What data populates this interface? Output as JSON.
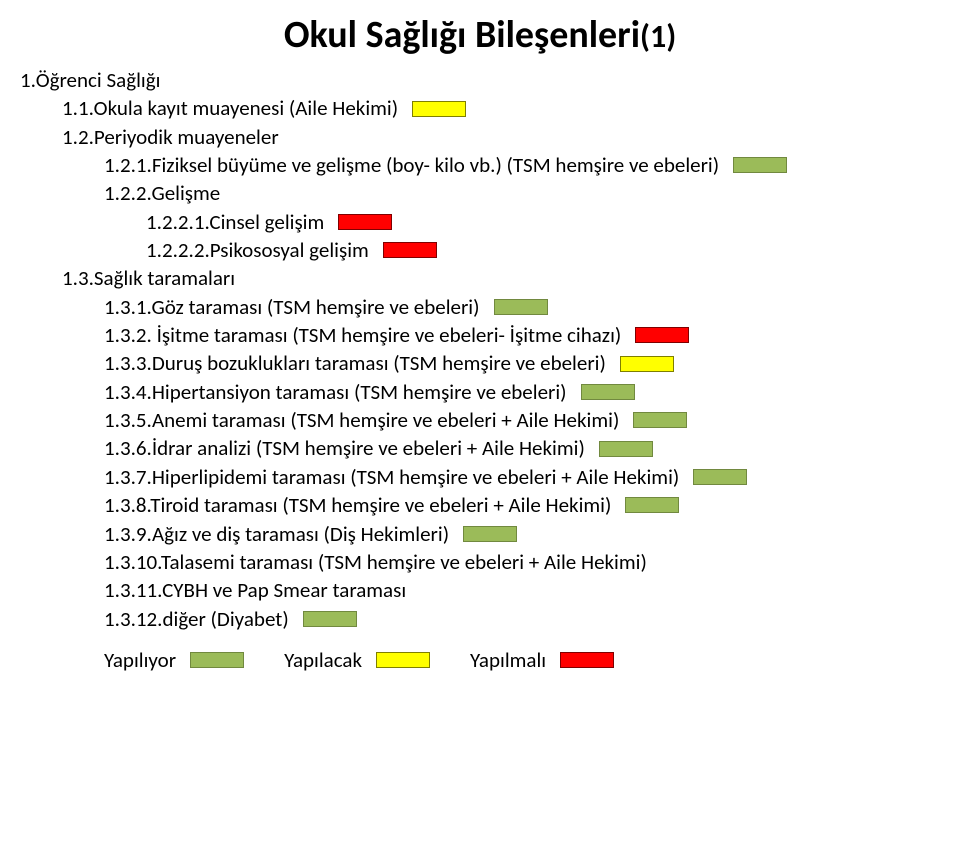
{
  "title_main": "Okul Sağlığı Bileşenleri",
  "title_suffix": "(1)",
  "colors": {
    "green_fill": "#9bbb59",
    "green_border": "#71893f",
    "yellow_fill": "#ffff00",
    "yellow_border": "#7f7f00",
    "red_fill": "#ff0000",
    "red_border": "#7f0000",
    "text": "#000000"
  },
  "items": [
    {
      "indent": 0,
      "text": "1.Öğrenci Sağlığı",
      "swatch": null
    },
    {
      "indent": 1,
      "text": "1.1.Okula kayıt muayenesi (Aile Hekimi)",
      "swatch": "yellow"
    },
    {
      "indent": 1,
      "text": "1.2.Periyodik muayeneler",
      "swatch": null
    },
    {
      "indent": 2,
      "text": "1.2.1.Fiziksel büyüme ve gelişme (boy- kilo vb.)  (TSM hemşire ve ebeleri)",
      "swatch": "green"
    },
    {
      "indent": 2,
      "text": "1.2.2.Gelişme",
      "swatch": null
    },
    {
      "indent": 3,
      "text": "1.2.2.1.Cinsel gelişim",
      "swatch": "red"
    },
    {
      "indent": 3,
      "text": "1.2.2.2.Psikososyal gelişim",
      "swatch": "red"
    },
    {
      "indent": 1,
      "text": "1.3.Sağlık taramaları",
      "swatch": null
    },
    {
      "indent": 2,
      "text": "1.3.1.Göz taraması  (TSM hemşire ve ebeleri)",
      "swatch": "green"
    },
    {
      "indent": 2,
      "text": "1.3.2. İşitme taraması (TSM hemşire ve ebeleri- İşitme cihazı)",
      "swatch": "red"
    },
    {
      "indent": 2,
      "text": "1.3.3.Duruş bozuklukları taraması (TSM hemşire ve ebeleri)",
      "swatch": "yellow"
    },
    {
      "indent": 2,
      "text": "1.3.4.Hipertansiyon taraması (TSM hemşire ve ebeleri)",
      "swatch": "green"
    },
    {
      "indent": 2,
      "text": "1.3.5.Anemi taraması (TSM hemşire ve ebeleri + Aile Hekimi)",
      "swatch": "green"
    },
    {
      "indent": 2,
      "text": "1.3.6.İdrar analizi (TSM hemşire ve ebeleri + Aile Hekimi)",
      "swatch": "green"
    },
    {
      "indent": 2,
      "text": "1.3.7.Hiperlipidemi taraması (TSM hemşire ve ebeleri + Aile Hekimi)",
      "swatch": "green"
    },
    {
      "indent": 2,
      "text": "1.3.8.Tiroid taraması (TSM hemşire ve ebeleri + Aile Hekimi)",
      "swatch": "green"
    },
    {
      "indent": 2,
      "text": "1.3.9.Ağız ve diş taraması  (Diş Hekimleri)",
      "swatch": "green"
    },
    {
      "indent": 2,
      "text": "1.3.10.Talasemi taraması (TSM hemşire ve ebeleri + Aile Hekimi)",
      "swatch": null
    },
    {
      "indent": 2,
      "text": "1.3.11.CYBH ve Pap Smear taraması",
      "swatch": null
    },
    {
      "indent": 2,
      "text": "1.3.12.diğer (Diyabet)",
      "swatch": "green"
    }
  ],
  "legend": [
    {
      "label": "Yapılıyor",
      "swatch": "green"
    },
    {
      "label": "Yapılacak",
      "swatch": "yellow"
    },
    {
      "label": "Yapılmalı",
      "swatch": "red"
    }
  ]
}
